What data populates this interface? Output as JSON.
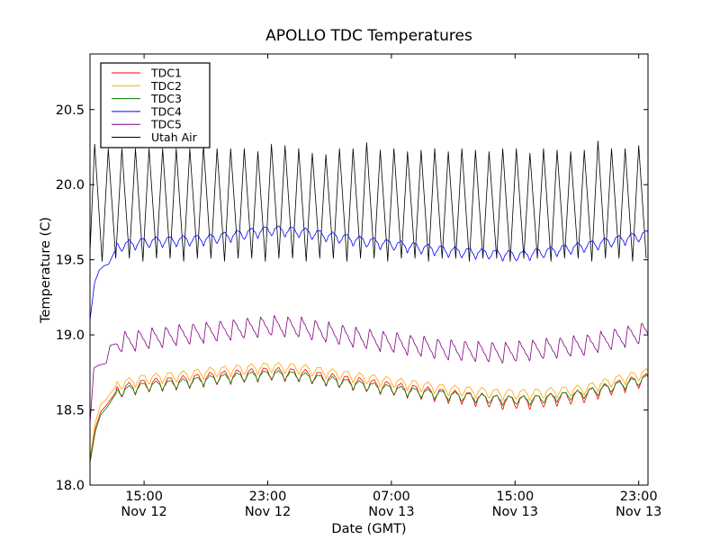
{
  "chart_data": {
    "type": "line",
    "title": "APOLLO TDC Temperatures",
    "xlabel": "Date (GMT)",
    "ylabel": "Temperature (C)",
    "x_unit": "hours since Nov 12 11:30 GMT",
    "xlim": [
      0,
      36.1
    ],
    "ylim": [
      18.0,
      20.87
    ],
    "grid": false,
    "legend_position": "top-left",
    "y_ticks": [
      {
        "value": 18.0,
        "label": "18.0"
      },
      {
        "value": 18.5,
        "label": "18.5"
      },
      {
        "value": 19.0,
        "label": "19.0"
      },
      {
        "value": 19.5,
        "label": "19.5"
      },
      {
        "value": 20.0,
        "label": "20.0"
      },
      {
        "value": 20.5,
        "label": "20.5"
      }
    ],
    "x_ticks": [
      {
        "value": 3.5,
        "time": "15:00",
        "date": "Nov 12"
      },
      {
        "value": 11.5,
        "time": "23:00",
        "date": "Nov 12"
      },
      {
        "value": 19.5,
        "time": "07:00",
        "date": "Nov 13"
      },
      {
        "value": 27.5,
        "time": "15:00",
        "date": "Nov 13"
      },
      {
        "value": 35.5,
        "time": "23:00",
        "date": "Nov 13"
      }
    ],
    "series": [
      {
        "name": "TDC1",
        "color": "#ff0000",
        "trend_x": [
          0,
          0.35,
          0.7,
          1.05,
          1.75,
          3.5,
          5.8,
          8.1,
          11.7,
          13.5,
          17.4,
          20.3,
          23.2,
          26.7,
          28.5,
          31.9,
          34.0,
          36.1
        ],
        "trend_y": [
          18.16,
          18.38,
          18.49,
          18.53,
          18.63,
          18.67,
          18.69,
          18.72,
          18.75,
          18.74,
          18.68,
          18.64,
          18.6,
          18.56,
          18.56,
          18.6,
          18.66,
          18.71
        ],
        "oscillation": {
          "period_h": 0.88,
          "amplitude": 0.045,
          "shape": "scallop"
        }
      },
      {
        "name": "TDC2",
        "color": "#ffa500",
        "trend_x": [
          0,
          0.35,
          0.7,
          1.05,
          1.75,
          3.5,
          5.8,
          8.1,
          11.7,
          13.5,
          17.4,
          20.3,
          23.2,
          26.7,
          28.5,
          31.9,
          34.0,
          36.1
        ],
        "trend_y": [
          18.18,
          18.42,
          18.54,
          18.57,
          18.67,
          18.71,
          18.73,
          18.76,
          18.79,
          18.78,
          18.72,
          18.68,
          18.64,
          18.61,
          18.61,
          18.64,
          18.7,
          18.75
        ],
        "oscillation": {
          "period_h": 0.88,
          "amplitude": 0.035,
          "shape": "scallop"
        }
      },
      {
        "name": "TDC3",
        "color": "#008000",
        "trend_x": [
          0,
          0.35,
          0.7,
          1.05,
          1.75,
          3.5,
          5.8,
          8.1,
          11.7,
          13.5,
          17.4,
          20.3,
          23.2,
          26.7,
          28.5,
          31.9,
          34.0,
          36.1
        ],
        "trend_y": [
          18.15,
          18.36,
          18.47,
          18.51,
          18.62,
          18.66,
          18.68,
          18.71,
          18.74,
          18.73,
          18.67,
          18.63,
          18.6,
          18.57,
          18.57,
          18.61,
          18.66,
          18.71
        ],
        "oscillation": {
          "period_h": 0.88,
          "amplitude": 0.03,
          "shape": "scallop"
        }
      },
      {
        "name": "TDC4",
        "color": "#0000ff",
        "trend_x": [
          0,
          0.3,
          0.6,
          0.9,
          1.2,
          1.75,
          3.5,
          7.6,
          11.7,
          13.5,
          17.4,
          23.2,
          27.8,
          31.9,
          36.1
        ],
        "trend_y": [
          19.1,
          19.35,
          19.43,
          19.46,
          19.47,
          19.59,
          19.62,
          19.64,
          19.7,
          19.69,
          19.63,
          19.56,
          19.53,
          19.59,
          19.67
        ],
        "oscillation": {
          "period_h": 0.88,
          "amplitude": 0.035,
          "shape": "scallop"
        }
      },
      {
        "name": "TDC5",
        "color": "#800080",
        "trend_x": [
          0,
          0.25,
          0.6,
          1.05,
          1.3,
          2.0,
          3.5,
          5.8,
          11.7,
          13.5,
          17.4,
          23.2,
          26.7,
          31.9,
          36.1
        ],
        "trend_y": [
          18.41,
          18.78,
          18.8,
          18.81,
          18.93,
          18.95,
          18.97,
          19.0,
          19.06,
          19.05,
          18.98,
          18.9,
          18.88,
          18.93,
          19.02
        ],
        "oscillation": {
          "period_h": 0.88,
          "amplitude": 0.07,
          "shape": "sawtooth"
        }
      },
      {
        "name": "Utah Air",
        "color": "#000000",
        "trend_x": [
          0,
          36.1
        ],
        "trend_y": [
          19.87,
          19.87
        ],
        "oscillation": {
          "period_h": 0.88,
          "shape": "triangle",
          "first_peak_h": 0.3,
          "peaks": [
            20.27,
            20.24,
            20.24,
            20.24,
            20.24,
            20.24,
            20.24,
            20.24,
            20.26,
            20.24,
            20.24,
            20.24,
            20.22,
            20.27,
            20.26,
            20.24,
            20.21,
            20.2,
            20.24,
            20.24,
            20.28,
            20.23,
            20.24,
            20.22,
            20.23,
            20.24,
            20.22,
            20.24,
            20.23,
            20.22,
            20.24,
            20.24,
            20.21,
            20.24,
            20.23,
            20.22,
            20.23,
            20.29,
            20.24,
            20.24,
            20.26,
            20.25
          ],
          "trough": 19.49
        }
      }
    ]
  }
}
